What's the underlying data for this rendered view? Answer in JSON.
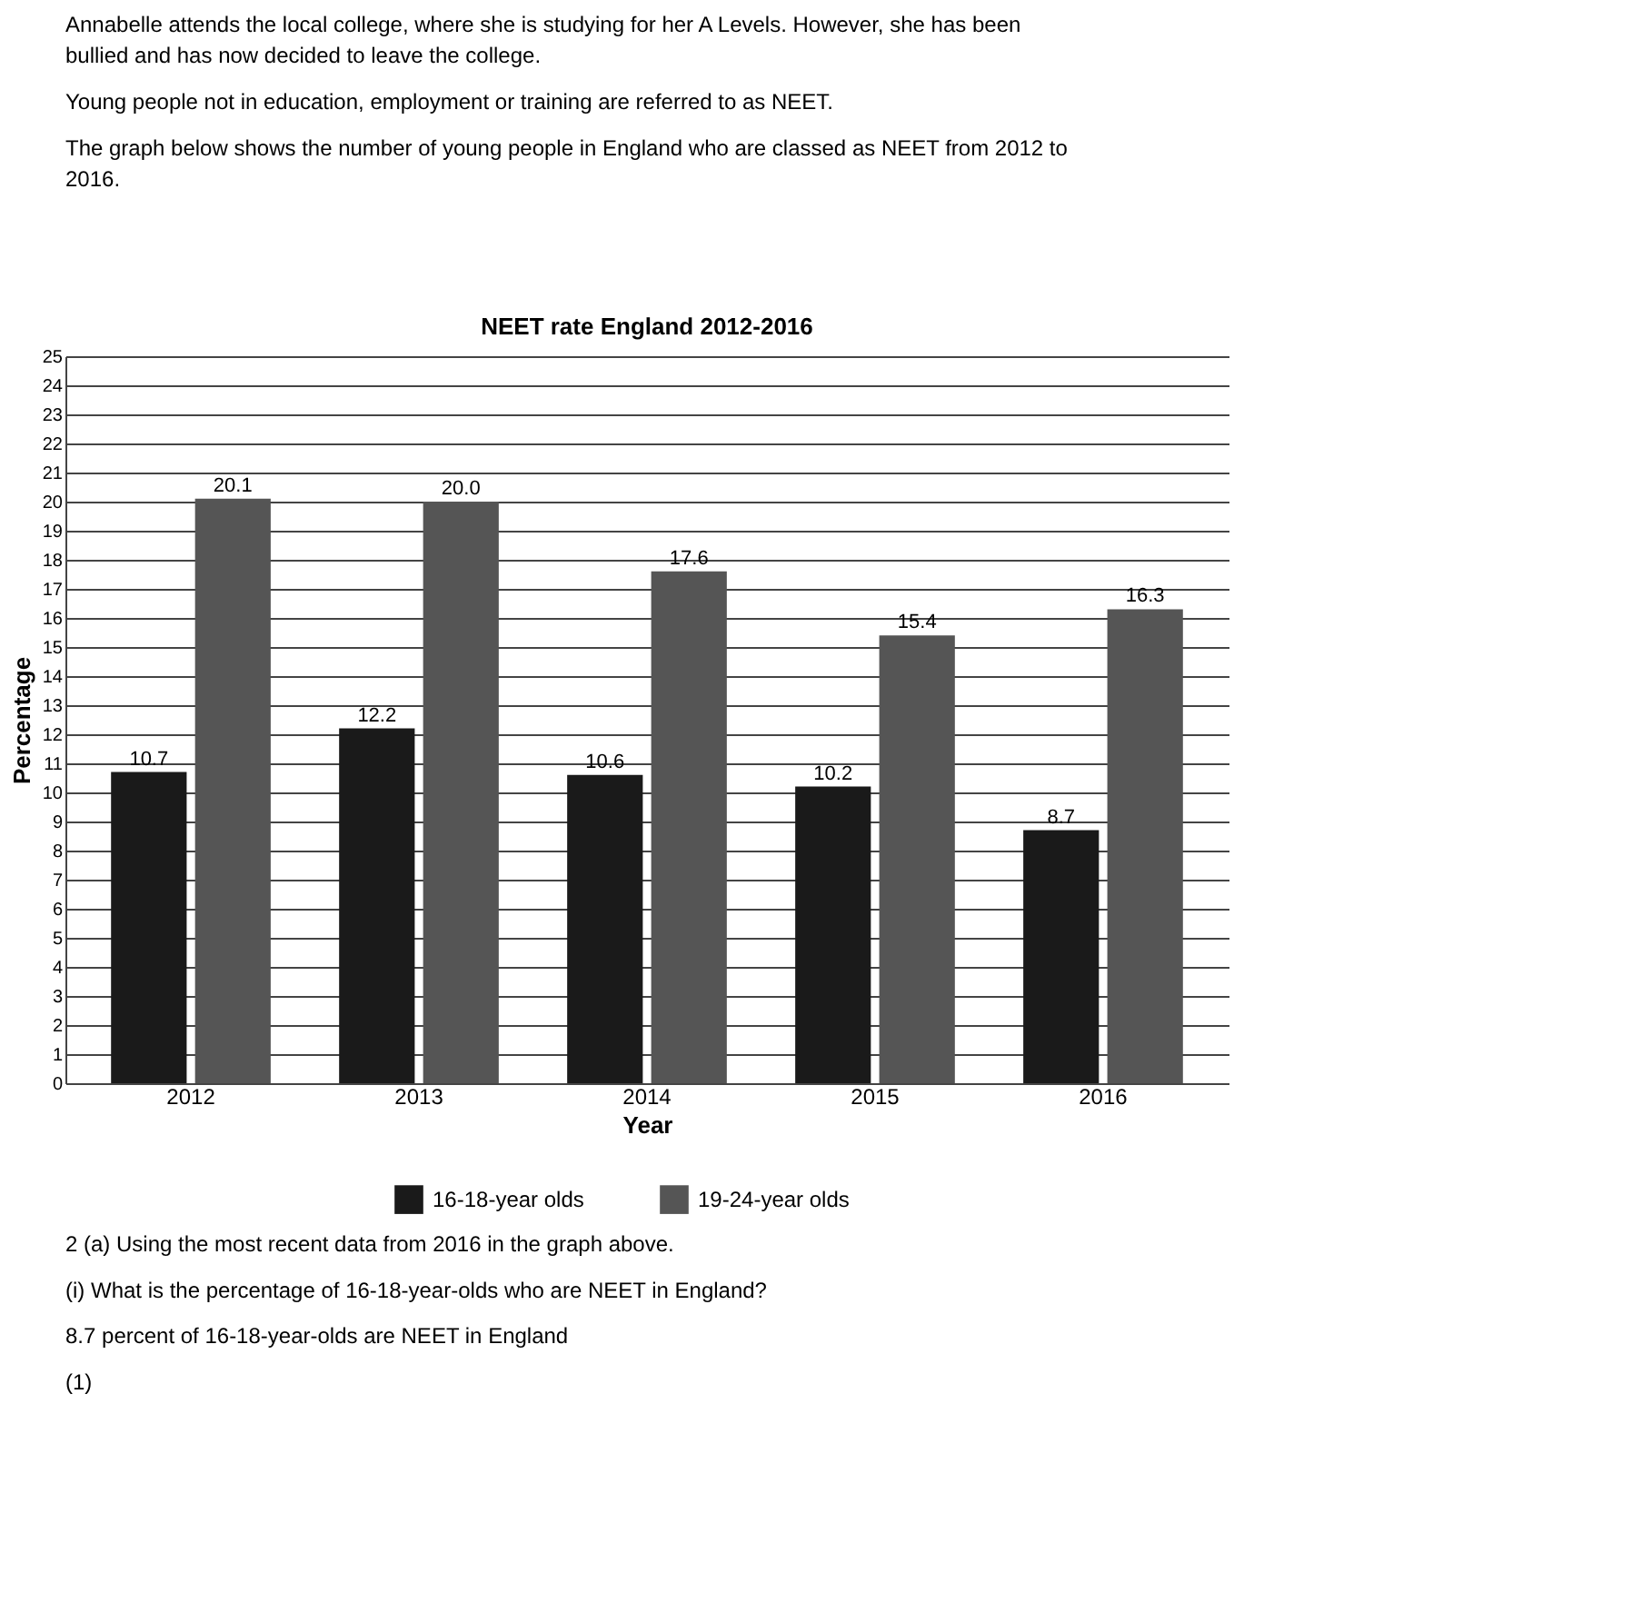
{
  "chart_data": {
    "type": "bar",
    "title": "NEET rate England 2012-2016",
    "xlabel": "Year",
    "ylabel": "Percentage",
    "categories": [
      "2012",
      "2013",
      "2014",
      "2015",
      "2016"
    ],
    "series": [
      {
        "name": "16-18-year olds",
        "color": "#1a1a1a",
        "values": [
          10.7,
          12.2,
          10.6,
          10.2,
          8.7
        ],
        "value_labels": [
          "10.7",
          "12.2",
          "10.6",
          "10.2",
          "8.7"
        ]
      },
      {
        "name": "19-24-year olds",
        "color": "#555555",
        "values": [
          20.1,
          20.0,
          17.6,
          15.4,
          16.3
        ],
        "value_labels": [
          "20.1",
          "20.0",
          "17.6",
          "15.4",
          "16.3"
        ]
      }
    ],
    "ylim": [
      0,
      25
    ],
    "yticks": [
      0,
      1,
      2,
      3,
      4,
      5,
      6,
      7,
      8,
      9,
      10,
      11,
      12,
      13,
      14,
      15,
      16,
      17,
      18,
      19,
      20,
      21,
      22,
      23,
      24,
      25
    ],
    "grid": "y",
    "legend": "bottom",
    "annotations": [
      "Annabelle attends the local college, where she is studying for her A Levels. However, she has been bullied and has now decided to leave the college.",
      "Young people not in education, employment or training are referred to as NEET.",
      "The graph below shows the number of young people in England who are classed as NEET from 2012 to 2016.",
      "2 (a) Using the most recent data from 2016 in the graph above.",
      "(i) What is the percentage of 16-18-year-olds who are NEET in England?",
      "8.7 percent of 16-18-year-olds are NEET in England",
      "(1)"
    ]
  }
}
